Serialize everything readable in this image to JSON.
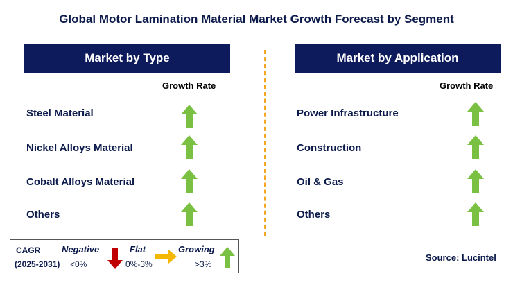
{
  "title": "Global Motor Lamination Material Market Growth Forecast by Segment",
  "left_panel": {
    "header": "Market by Type",
    "growth_label": "Growth Rate",
    "items": [
      "Steel Material",
      "Nickel Alloys Material",
      "Cobalt Alloys Material",
      "Others"
    ],
    "trend": "up-arrow-icon"
  },
  "right_panel": {
    "header": "Market by Application",
    "growth_label": "Growth Rate",
    "items": [
      "Power Infrastructure",
      "Construction",
      "Oil & Gas",
      "Others"
    ],
    "trend": "up-arrow-icon"
  },
  "legend": {
    "cagr_label": "CAGR",
    "period": "(2025-2031)",
    "negative": {
      "label": "Negative",
      "range": "<0%",
      "color": "#c00000"
    },
    "flat": {
      "label": "Flat",
      "range": "0%-3%",
      "color": "#f5b800"
    },
    "growing": {
      "label": "Growing",
      "range": ">3%",
      "color": "#7ac143"
    }
  },
  "source": "Source: Lucintel",
  "colors": {
    "header_bg": "#0d1b5c",
    "up_arrow": "#7ac143",
    "divider": "#f5a623"
  }
}
